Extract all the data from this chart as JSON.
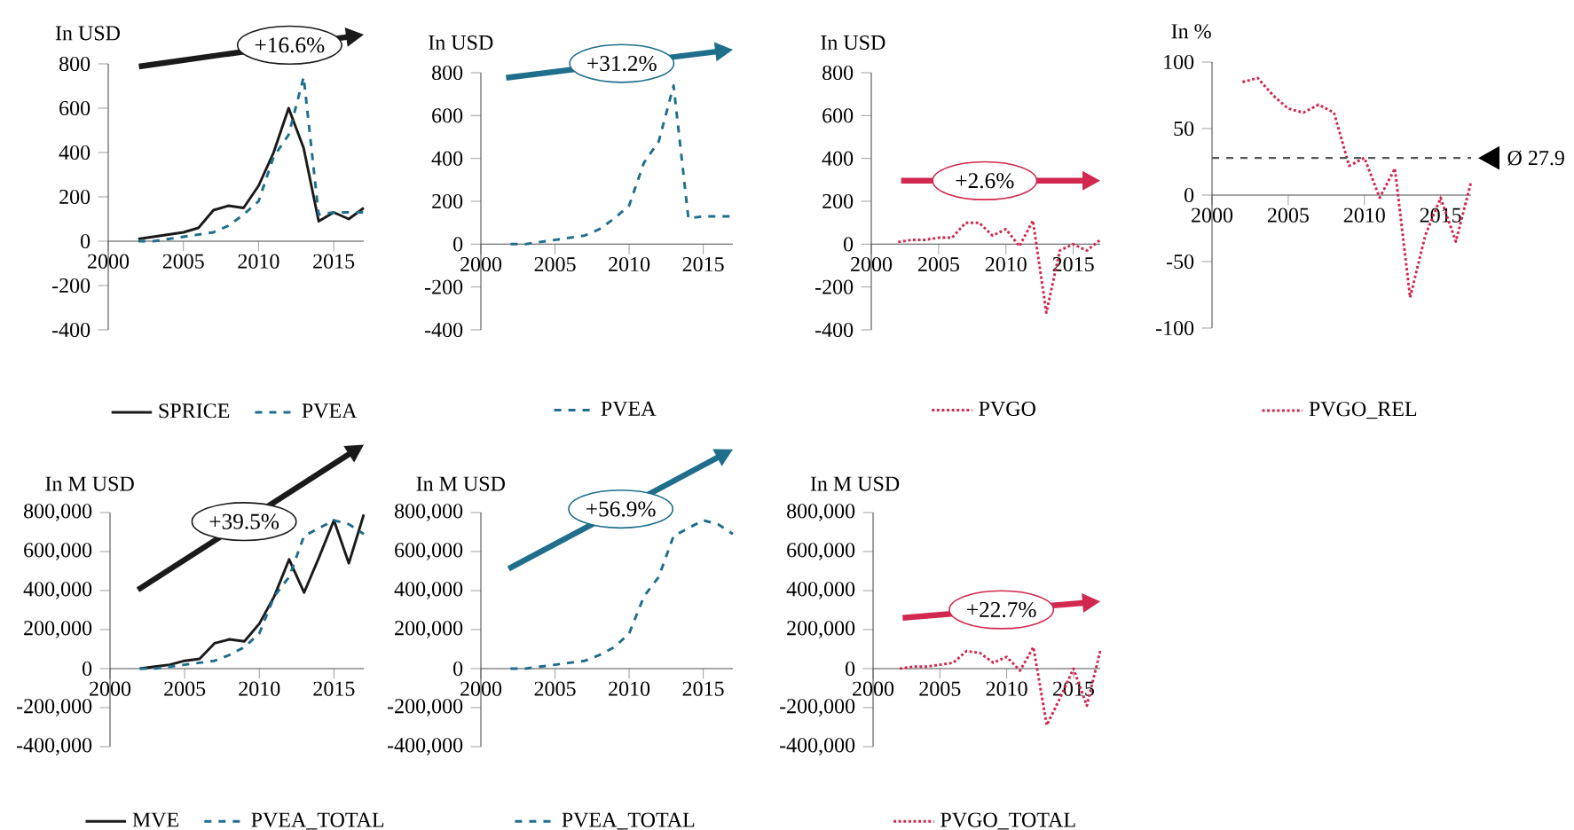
{
  "chart_data": [
    {
      "type": "line",
      "ylabel": "In USD",
      "x": [
        2002,
        2003,
        2004,
        2005,
        2006,
        2007,
        2008,
        2009,
        2010,
        2011,
        2012,
        2013,
        2014,
        2015,
        2016,
        2017
      ],
      "xlim": [
        2000,
        2017
      ],
      "xticks": [
        2000,
        2005,
        2010,
        2015
      ],
      "ylim": [
        -400,
        800
      ],
      "yticks": [
        -400,
        -200,
        0,
        200,
        400,
        600,
        800
      ],
      "legend": "bottom",
      "annotations": [
        "+16.6%"
      ],
      "series": [
        {
          "name": "SPRICE",
          "color": "#1a1a1a",
          "line_style": "solid",
          "values": [
            10,
            20,
            30,
            40,
            60,
            140,
            160,
            150,
            250,
            400,
            600,
            420,
            90,
            130,
            100,
            150
          ]
        },
        {
          "name": "PVEA",
          "color": "#1f6e8c",
          "line_style": "dashed",
          "values": [
            0,
            0,
            10,
            20,
            30,
            40,
            70,
            120,
            180,
            380,
            480,
            740,
            120,
            130,
            130,
            130
          ]
        }
      ]
    },
    {
      "type": "line",
      "ylabel": "In USD",
      "x": [
        2002,
        2003,
        2004,
        2005,
        2006,
        2007,
        2008,
        2009,
        2010,
        2011,
        2012,
        2013,
        2014,
        2015,
        2016,
        2017
      ],
      "xlim": [
        2000,
        2017
      ],
      "xticks": [
        2000,
        2005,
        2010,
        2015
      ],
      "ylim": [
        -400,
        800
      ],
      "yticks": [
        -400,
        -200,
        0,
        200,
        400,
        600,
        800
      ],
      "legend": "bottom",
      "annotations": [
        "+31.2%"
      ],
      "series": [
        {
          "name": "PVEA",
          "color": "#1f6e8c",
          "line_style": "dashed",
          "values": [
            0,
            0,
            10,
            20,
            30,
            40,
            70,
            120,
            180,
            380,
            480,
            740,
            120,
            130,
            130,
            130
          ]
        }
      ]
    },
    {
      "type": "line",
      "ylabel": "In USD",
      "x": [
        2002,
        2003,
        2004,
        2005,
        2006,
        2007,
        2008,
        2009,
        2010,
        2011,
        2012,
        2013,
        2014,
        2015,
        2016,
        2017
      ],
      "xlim": [
        2000,
        2017
      ],
      "xticks": [
        2000,
        2005,
        2010,
        2015
      ],
      "ylim": [
        -400,
        800
      ],
      "yticks": [
        -400,
        -200,
        0,
        200,
        400,
        600,
        800
      ],
      "legend": "bottom",
      "annotations": [
        "+2.6%"
      ],
      "series": [
        {
          "name": "PVGO",
          "color": "#d0284e",
          "line_style": "dotted",
          "values": [
            10,
            20,
            20,
            30,
            30,
            100,
            100,
            40,
            70,
            -10,
            110,
            -320,
            -30,
            0,
            -30,
            20
          ]
        }
      ]
    },
    {
      "type": "line",
      "ylabel": "In %",
      "x": [
        2002,
        2003,
        2004,
        2005,
        2006,
        2007,
        2008,
        2009,
        2010,
        2011,
        2012,
        2013,
        2014,
        2015,
        2016,
        2017
      ],
      "xlim": [
        2000,
        2017
      ],
      "xticks": [
        2000,
        2005,
        2010,
        2015
      ],
      "ylim": [
        -100,
        100
      ],
      "yticks": [
        -100,
        -50,
        0,
        50,
        100
      ],
      "legend": "bottom",
      "ref_lines": [
        {
          "axis": "y",
          "value": 27.9,
          "label": "Ø 27.9",
          "color": "#555555",
          "line_style": "dashed"
        }
      ],
      "series": [
        {
          "name": "PVGO_REL",
          "color": "#d0284e",
          "line_style": "dotted",
          "values": [
            85,
            88,
            75,
            65,
            62,
            68,
            62,
            22,
            28,
            -2,
            20,
            -77,
            -30,
            -2,
            -35,
            10
          ]
        }
      ]
    },
    {
      "type": "line",
      "ylabel": "In M USD",
      "x": [
        2002,
        2003,
        2004,
        2005,
        2006,
        2007,
        2008,
        2009,
        2010,
        2011,
        2012,
        2013,
        2014,
        2015,
        2016,
        2017
      ],
      "xlim": [
        2000,
        2017
      ],
      "xticks": [
        2000,
        2005,
        2010,
        2015
      ],
      "ylim": [
        -400000,
        800000
      ],
      "yticks": [
        {
          "value": -400000,
          "label": "-400,000"
        },
        {
          "value": -200000,
          "label": "-200,000"
        },
        0,
        {
          "value": 200000,
          "label": "200,000"
        },
        {
          "value": 400000,
          "label": "400,000"
        },
        {
          "value": 600000,
          "label": "600,000"
        },
        {
          "value": 800000,
          "label": "800,000"
        }
      ],
      "legend": "bottom",
      "annotations": [
        "+39.5%"
      ],
      "series": [
        {
          "name": "MVE",
          "color": "#1a1a1a",
          "line_style": "solid",
          "values": [
            0,
            10000,
            20000,
            40000,
            50000,
            130000,
            150000,
            140000,
            230000,
            370000,
            560000,
            390000,
            570000,
            760000,
            540000,
            790000
          ]
        },
        {
          "name": "PVEA_TOTAL",
          "color": "#1f6e8c",
          "line_style": "dashed",
          "values": [
            0,
            0,
            10000,
            20000,
            30000,
            40000,
            70000,
            110000,
            180000,
            370000,
            470000,
            680000,
            720000,
            760000,
            740000,
            690000
          ]
        }
      ]
    },
    {
      "type": "line",
      "ylabel": "In M USD",
      "x": [
        2002,
        2003,
        2004,
        2005,
        2006,
        2007,
        2008,
        2009,
        2010,
        2011,
        2012,
        2013,
        2014,
        2015,
        2016,
        2017
      ],
      "xlim": [
        2000,
        2017
      ],
      "xticks": [
        2000,
        2005,
        2010,
        2015
      ],
      "ylim": [
        -400000,
        800000
      ],
      "yticks": [
        {
          "value": -400000,
          "label": "-400,000"
        },
        {
          "value": -200000,
          "label": "-200,000"
        },
        0,
        {
          "value": 200000,
          "label": "200,000"
        },
        {
          "value": 400000,
          "label": "400,000"
        },
        {
          "value": 600000,
          "label": "600,000"
        },
        {
          "value": 800000,
          "label": "800,000"
        }
      ],
      "legend": "bottom",
      "annotations": [
        "+56.9%"
      ],
      "series": [
        {
          "name": "PVEA_TOTAL",
          "color": "#1f6e8c",
          "line_style": "dashed",
          "values": [
            0,
            0,
            10000,
            20000,
            30000,
            40000,
            70000,
            110000,
            180000,
            370000,
            470000,
            680000,
            720000,
            760000,
            740000,
            690000
          ]
        }
      ]
    },
    {
      "type": "line",
      "ylabel": "In M USD",
      "x": [
        2002,
        2003,
        2004,
        2005,
        2006,
        2007,
        2008,
        2009,
        2010,
        2011,
        2012,
        2013,
        2014,
        2015,
        2016,
        2017
      ],
      "xlim": [
        2000,
        2017
      ],
      "xticks": [
        2000,
        2005,
        2010,
        2015
      ],
      "ylim": [
        -400000,
        800000
      ],
      "yticks": [
        {
          "value": -400000,
          "label": "-400,000"
        },
        {
          "value": -200000,
          "label": "-200,000"
        },
        0,
        {
          "value": 200000,
          "label": "200,000"
        },
        {
          "value": 400000,
          "label": "400,000"
        },
        {
          "value": 600000,
          "label": "600,000"
        },
        {
          "value": 800000,
          "label": "800,000"
        }
      ],
      "legend": "bottom",
      "annotations": [
        "+22.7%"
      ],
      "series": [
        {
          "name": "PVGO_TOTAL",
          "color": "#d0284e",
          "line_style": "dotted",
          "values": [
            0,
            10000,
            10000,
            20000,
            30000,
            90000,
            80000,
            30000,
            60000,
            -10000,
            110000,
            -290000,
            -150000,
            0,
            -190000,
            90000
          ]
        }
      ]
    }
  ]
}
